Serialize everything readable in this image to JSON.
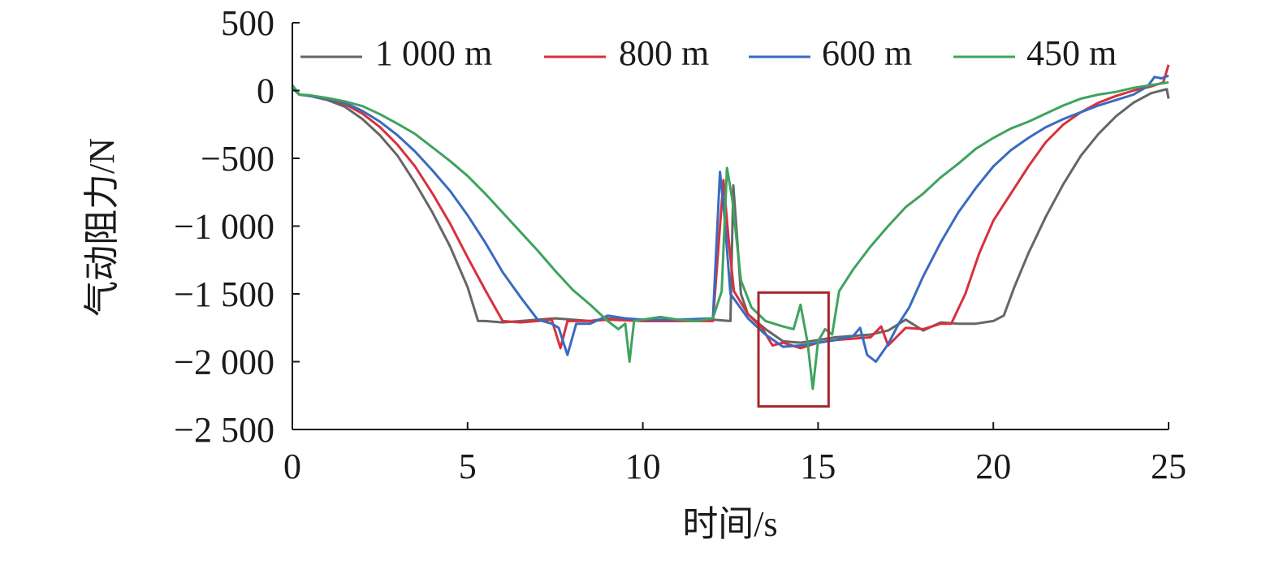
{
  "chart_data": {
    "type": "line",
    "xlabel": "时间/s",
    "ylabel": "气动阻力/N",
    "xlim": [
      0,
      25
    ],
    "ylim": [
      -2500,
      500
    ],
    "xticks": [
      0,
      5,
      10,
      15,
      20,
      25
    ],
    "yticks": [
      500,
      0,
      -500,
      -1000,
      -1500,
      -2000,
      -2500
    ],
    "xtick_labels": [
      "0",
      "5",
      "10",
      "15",
      "20",
      "25"
    ],
    "ytick_labels": [
      "500",
      "0",
      "−500",
      "−1 000",
      "−1 500",
      "−2 000",
      "−2 500"
    ],
    "grid": false,
    "legend_position": "top",
    "highlight_box": {
      "x": [
        13.3,
        15.3
      ],
      "y": [
        -2330,
        -1490
      ],
      "color": "#a8262e"
    },
    "series": [
      {
        "name": "1 000 m",
        "color": "#666666",
        "points": [
          [
            0,
            20
          ],
          [
            0.2,
            -30
          ],
          [
            0.5,
            -40
          ],
          [
            1,
            -70
          ],
          [
            1.5,
            -120
          ],
          [
            2,
            -210
          ],
          [
            2.5,
            -330
          ],
          [
            3,
            -480
          ],
          [
            3.5,
            -680
          ],
          [
            4,
            -900
          ],
          [
            4.5,
            -1150
          ],
          [
            5,
            -1450
          ],
          [
            5.3,
            -1700
          ],
          [
            5.5,
            -1700
          ],
          [
            6,
            -1710
          ],
          [
            7,
            -1690
          ],
          [
            7.5,
            -1680
          ],
          [
            8,
            -1690
          ],
          [
            8.5,
            -1700
          ],
          [
            9,
            -1680
          ],
          [
            10,
            -1700
          ],
          [
            11,
            -1700
          ],
          [
            12,
            -1690
          ],
          [
            12.5,
            -1700
          ],
          [
            12.58,
            -700
          ],
          [
            12.68,
            -1050
          ],
          [
            12.8,
            -1500
          ],
          [
            13,
            -1650
          ],
          [
            13.5,
            -1760
          ],
          [
            14,
            -1850
          ],
          [
            14.5,
            -1860
          ],
          [
            15,
            -1840
          ],
          [
            15.5,
            -1820
          ],
          [
            16,
            -1810
          ],
          [
            16.5,
            -1800
          ],
          [
            17,
            -1770
          ],
          [
            17.5,
            -1690
          ],
          [
            18,
            -1770
          ],
          [
            18.5,
            -1710
          ],
          [
            19,
            -1720
          ],
          [
            19.5,
            -1720
          ],
          [
            20,
            -1700
          ],
          [
            20.3,
            -1660
          ],
          [
            20.6,
            -1450
          ],
          [
            21,
            -1200
          ],
          [
            21.5,
            -930
          ],
          [
            22,
            -690
          ],
          [
            22.5,
            -480
          ],
          [
            23,
            -320
          ],
          [
            23.5,
            -190
          ],
          [
            24,
            -90
          ],
          [
            24.5,
            -20
          ],
          [
            24.95,
            10
          ],
          [
            25,
            -60
          ]
        ]
      },
      {
        "name": "800 m",
        "color": "#d9303c",
        "points": [
          [
            0,
            20
          ],
          [
            0.2,
            -30
          ],
          [
            0.5,
            -40
          ],
          [
            1,
            -60
          ],
          [
            1.5,
            -100
          ],
          [
            2,
            -170
          ],
          [
            2.5,
            -270
          ],
          [
            3,
            -400
          ],
          [
            3.5,
            -560
          ],
          [
            4,
            -760
          ],
          [
            4.5,
            -980
          ],
          [
            5,
            -1230
          ],
          [
            5.5,
            -1470
          ],
          [
            6,
            -1700
          ],
          [
            6.5,
            -1710
          ],
          [
            7,
            -1700
          ],
          [
            7.4,
            -1690
          ],
          [
            7.65,
            -1900
          ],
          [
            7.85,
            -1700
          ],
          [
            8.5,
            -1700
          ],
          [
            9,
            -1690
          ],
          [
            10,
            -1700
          ],
          [
            11,
            -1700
          ],
          [
            12,
            -1700
          ],
          [
            12.3,
            -660
          ],
          [
            12.45,
            -1100
          ],
          [
            12.6,
            -1480
          ],
          [
            13,
            -1650
          ],
          [
            13.4,
            -1750
          ],
          [
            13.7,
            -1880
          ],
          [
            14,
            -1860
          ],
          [
            14.5,
            -1900
          ],
          [
            15,
            -1860
          ],
          [
            15.5,
            -1840
          ],
          [
            16,
            -1830
          ],
          [
            16.5,
            -1820
          ],
          [
            16.8,
            -1740
          ],
          [
            17,
            -1880
          ],
          [
            17.5,
            -1750
          ],
          [
            18,
            -1760
          ],
          [
            18.5,
            -1720
          ],
          [
            18.8,
            -1720
          ],
          [
            19.2,
            -1500
          ],
          [
            19.6,
            -1200
          ],
          [
            20,
            -960
          ],
          [
            20.5,
            -760
          ],
          [
            21,
            -560
          ],
          [
            21.5,
            -380
          ],
          [
            22,
            -250
          ],
          [
            22.5,
            -160
          ],
          [
            23,
            -90
          ],
          [
            23.5,
            -40
          ],
          [
            24,
            0
          ],
          [
            24.5,
            30
          ],
          [
            24.85,
            60
          ],
          [
            25,
            190
          ]
        ]
      },
      {
        "name": "600 m",
        "color": "#3a6bbf",
        "points": [
          [
            0,
            20
          ],
          [
            0.2,
            -30
          ],
          [
            0.5,
            -40
          ],
          [
            1,
            -60
          ],
          [
            1.5,
            -90
          ],
          [
            2,
            -150
          ],
          [
            2.5,
            -230
          ],
          [
            3,
            -330
          ],
          [
            3.5,
            -450
          ],
          [
            4,
            -590
          ],
          [
            4.5,
            -740
          ],
          [
            5,
            -920
          ],
          [
            5.5,
            -1120
          ],
          [
            6,
            -1340
          ],
          [
            6.5,
            -1520
          ],
          [
            7,
            -1690
          ],
          [
            7.4,
            -1720
          ],
          [
            7.6,
            -1750
          ],
          [
            7.85,
            -1950
          ],
          [
            8.1,
            -1720
          ],
          [
            8.5,
            -1720
          ],
          [
            9,
            -1660
          ],
          [
            9.5,
            -1680
          ],
          [
            10,
            -1690
          ],
          [
            11,
            -1690
          ],
          [
            12,
            -1680
          ],
          [
            12.2,
            -600
          ],
          [
            12.32,
            -900
          ],
          [
            12.5,
            -1500
          ],
          [
            13,
            -1680
          ],
          [
            13.5,
            -1800
          ],
          [
            14,
            -1890
          ],
          [
            14.5,
            -1880
          ],
          [
            15,
            -1860
          ],
          [
            15.5,
            -1840
          ],
          [
            16,
            -1810
          ],
          [
            16.2,
            -1750
          ],
          [
            16.4,
            -1950
          ],
          [
            16.65,
            -2000
          ],
          [
            17,
            -1870
          ],
          [
            17.3,
            -1720
          ],
          [
            17.6,
            -1600
          ],
          [
            18,
            -1370
          ],
          [
            18.5,
            -1120
          ],
          [
            19,
            -900
          ],
          [
            19.5,
            -720
          ],
          [
            20,
            -560
          ],
          [
            20.5,
            -440
          ],
          [
            21,
            -350
          ],
          [
            21.5,
            -270
          ],
          [
            22,
            -210
          ],
          [
            22.5,
            -160
          ],
          [
            23,
            -110
          ],
          [
            23.5,
            -70
          ],
          [
            24,
            -30
          ],
          [
            24.4,
            30
          ],
          [
            24.6,
            100
          ],
          [
            24.8,
            90
          ],
          [
            25,
            110
          ]
        ]
      },
      {
        "name": "450 m",
        "color": "#3fa35f",
        "points": [
          [
            0,
            40
          ],
          [
            0.2,
            -30
          ],
          [
            0.5,
            -35
          ],
          [
            1,
            -55
          ],
          [
            1.5,
            -80
          ],
          [
            2,
            -115
          ],
          [
            2.5,
            -175
          ],
          [
            3,
            -245
          ],
          [
            3.5,
            -320
          ],
          [
            4,
            -420
          ],
          [
            4.5,
            -520
          ],
          [
            5,
            -630
          ],
          [
            5.5,
            -760
          ],
          [
            6,
            -900
          ],
          [
            6.5,
            -1040
          ],
          [
            7,
            -1180
          ],
          [
            7.5,
            -1330
          ],
          [
            8,
            -1470
          ],
          [
            8.5,
            -1580
          ],
          [
            9,
            -1700
          ],
          [
            9.3,
            -1760
          ],
          [
            9.5,
            -1720
          ],
          [
            9.62,
            -2000
          ],
          [
            9.75,
            -1700
          ],
          [
            10,
            -1690
          ],
          [
            10.5,
            -1670
          ],
          [
            11,
            -1690
          ],
          [
            11.5,
            -1700
          ],
          [
            12,
            -1680
          ],
          [
            12.25,
            -1480
          ],
          [
            12.4,
            -570
          ],
          [
            12.55,
            -800
          ],
          [
            12.8,
            -1400
          ],
          [
            13.1,
            -1600
          ],
          [
            13.5,
            -1700
          ],
          [
            14,
            -1740
          ],
          [
            14.3,
            -1760
          ],
          [
            14.5,
            -1580
          ],
          [
            14.7,
            -1860
          ],
          [
            14.85,
            -2200
          ],
          [
            15,
            -1850
          ],
          [
            15.2,
            -1760
          ],
          [
            15.4,
            -1800
          ],
          [
            15.6,
            -1480
          ],
          [
            16,
            -1320
          ],
          [
            16.5,
            -1150
          ],
          [
            17,
            -1000
          ],
          [
            17.5,
            -860
          ],
          [
            18,
            -760
          ],
          [
            18.5,
            -640
          ],
          [
            19,
            -540
          ],
          [
            19.5,
            -430
          ],
          [
            20,
            -350
          ],
          [
            20.5,
            -280
          ],
          [
            21,
            -230
          ],
          [
            21.5,
            -170
          ],
          [
            22,
            -110
          ],
          [
            22.5,
            -60
          ],
          [
            23,
            -30
          ],
          [
            23.5,
            -10
          ],
          [
            24,
            20
          ],
          [
            24.5,
            40
          ],
          [
            25,
            60
          ]
        ]
      }
    ]
  }
}
